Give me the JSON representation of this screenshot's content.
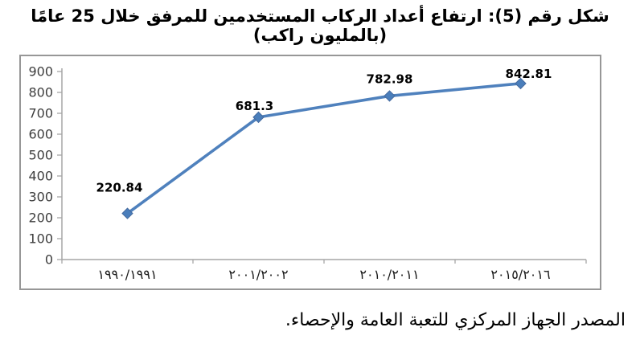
{
  "title": "شكل رقم (5): ارتفاع أعداد الركاب المستخدمين للمرفق خلال 25 عامًا (بالمليون راكب)",
  "source_note": "المصدر الجهاز المركزي للتعبة العامة والإحصاء.",
  "colors": {
    "line": "#4F81BD",
    "marker_fill": "#4A7EBB",
    "marker_stroke": "#44699D",
    "axis": "#A6A6A6",
    "frame_border": "#979797",
    "tick_label": "#3D3D3D",
    "category_label": "#1A1A1A",
    "data_label": "#000000"
  },
  "chart_data": {
    "type": "line",
    "title": "شكل رقم (5): ارتفاع أعداد الركاب المستخدمين للمرفق خلال 25 عامًا (بالمليون راكب)",
    "categories": [
      "١٩٩٠/١٩٩١",
      "٢٠٠١/٢٠٠٢",
      "٢٠١٠/٢٠١١",
      "٢٠١٥/٢٠١٦"
    ],
    "series": [
      {
        "name": "passengers-millions",
        "values": [
          220.84,
          681.3,
          782.98,
          842.81
        ],
        "labels": [
          "220.84",
          "681.3",
          "782.98",
          "842.81"
        ]
      }
    ],
    "xlabel": "",
    "ylabel": "",
    "ylim": [
      0,
      900
    ],
    "yticks": [
      0,
      100,
      200,
      300,
      400,
      500,
      600,
      700,
      800,
      900
    ],
    "ytick_labels": [
      "0",
      "100",
      "200",
      "300",
      "400",
      "500",
      "600",
      "700",
      "800",
      "900"
    ],
    "grid": false,
    "legend": "none",
    "marker": "diamond",
    "label_dx": [
      -10,
      -5,
      0,
      10
    ],
    "label_dy": [
      -27,
      -9,
      -16,
      -7
    ]
  }
}
